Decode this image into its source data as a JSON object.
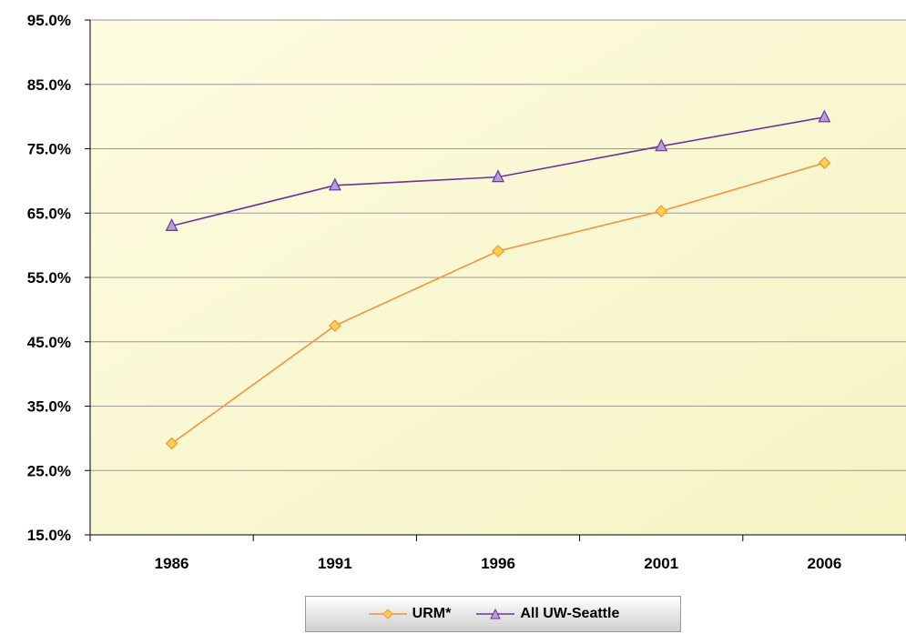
{
  "chart_data": {
    "type": "line",
    "categories": [
      "1986",
      "1991",
      "1996",
      "2001",
      "2006"
    ],
    "y_ticks": [
      "15.0%",
      "25.0%",
      "35.0%",
      "45.0%",
      "55.0%",
      "65.0%",
      "75.0%",
      "85.0%",
      "95.0%"
    ],
    "ylim": [
      15,
      95
    ],
    "grid": true,
    "legend_position": "bottom",
    "plot_background": "#fdfce0",
    "series": [
      {
        "name": "URM*",
        "values": [
          29.2,
          47.5,
          59.1,
          65.3,
          72.8
        ],
        "color": "#f7923a",
        "marker": "diamond",
        "marker_fill": "#fccf4c"
      },
      {
        "name": "All UW-Seattle",
        "values": [
          63.0,
          69.3,
          70.6,
          75.4,
          79.9
        ],
        "color": "#7030a0",
        "marker": "triangle",
        "marker_fill": "#b39ddb"
      }
    ]
  }
}
